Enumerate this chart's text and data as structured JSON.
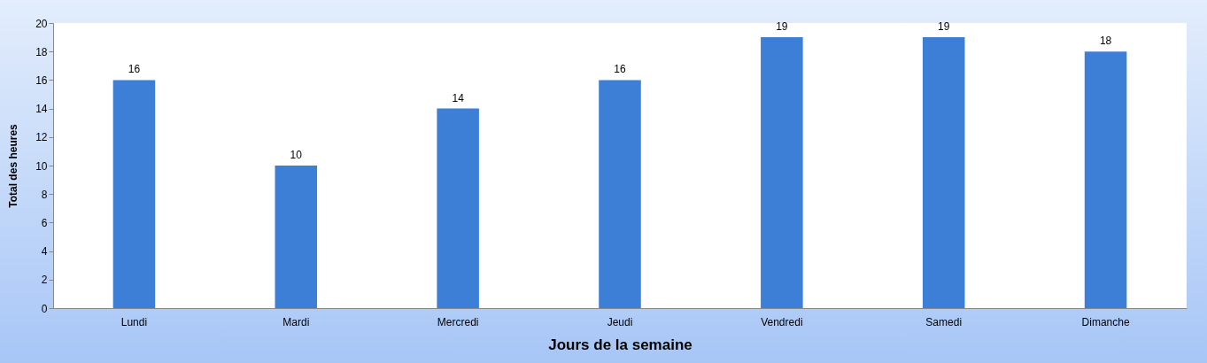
{
  "chart_data": {
    "type": "bar",
    "xlabel": "Jours de la semaine",
    "ylabel": "Total des heures",
    "categories": [
      "Lundi",
      "Mardi",
      "Mercredi",
      "Jeudi",
      "Vendredi",
      "Samedi",
      "Dimanche"
    ],
    "values": [
      16,
      10,
      14,
      16,
      19,
      19,
      18
    ],
    "color": "#3d7fd6",
    "ylim": [
      0,
      20
    ],
    "yticks": [
      0,
      2,
      4,
      6,
      8,
      10,
      12,
      14,
      16,
      18,
      20
    ],
    "grid": false,
    "data_labels": true
  }
}
